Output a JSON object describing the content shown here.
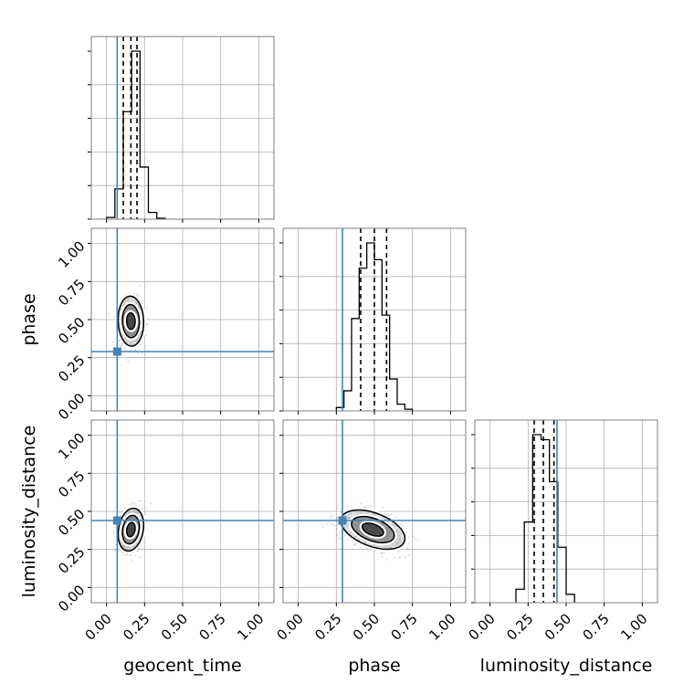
{
  "chart_data": {
    "type": "corner",
    "parameters": [
      "geocent_time",
      "phase",
      "luminosity_distance"
    ],
    "axis_labels": {
      "x": [
        "geocent_time",
        "phase",
        "luminosity_distance"
      ],
      "y": [
        "phase",
        "luminosity_distance"
      ]
    },
    "range": [
      -0.1,
      1.1
    ],
    "tick_values": [
      0.0,
      0.25,
      0.5,
      0.75,
      1.0
    ],
    "tick_labels": [
      "0.00",
      "0.25",
      "0.50",
      "0.75",
      "1.00"
    ],
    "grid": true,
    "truths": {
      "geocent_time": 0.07,
      "phase": 0.29,
      "luminosity_distance": 0.44
    },
    "quantiles": {
      "geocent_time": [
        0.11,
        0.16,
        0.2
      ],
      "phase": [
        0.41,
        0.5,
        0.58
      ],
      "luminosity_distance": [
        0.29,
        0.35,
        0.42
      ]
    },
    "histograms": {
      "geocent_time": {
        "bin_width": 0.055,
        "bins": [
          {
            "x0": 0.0,
            "count": 0.01
          },
          {
            "x0": 0.055,
            "count": 0.18
          },
          {
            "x0": 0.11,
            "count": 0.64
          },
          {
            "x0": 0.165,
            "count": 1.0
          },
          {
            "x0": 0.22,
            "count": 0.31
          },
          {
            "x0": 0.275,
            "count": 0.04
          },
          {
            "x0": 0.33,
            "count": 0.005
          }
        ]
      },
      "phase": {
        "bin_width": 0.05,
        "bins": [
          {
            "x0": 0.25,
            "count": 0.02
          },
          {
            "x0": 0.3,
            "count": 0.12
          },
          {
            "x0": 0.35,
            "count": 0.55
          },
          {
            "x0": 0.4,
            "count": 0.85
          },
          {
            "x0": 0.45,
            "count": 1.0
          },
          {
            "x0": 0.5,
            "count": 0.9
          },
          {
            "x0": 0.55,
            "count": 0.57
          },
          {
            "x0": 0.6,
            "count": 0.19
          },
          {
            "x0": 0.65,
            "count": 0.04
          },
          {
            "x0": 0.7,
            "count": 0.01
          }
        ]
      },
      "luminosity_distance": {
        "bin_width": 0.055,
        "bins": [
          {
            "x0": 0.17,
            "count": 0.08
          },
          {
            "x0": 0.225,
            "count": 0.48
          },
          {
            "x0": 0.28,
            "count": 1.0
          },
          {
            "x0": 0.335,
            "count": 0.97
          },
          {
            "x0": 0.39,
            "count": 0.72
          },
          {
            "x0": 0.445,
            "count": 0.33
          },
          {
            "x0": 0.5,
            "count": 0.05
          }
        ]
      }
    },
    "joint_2d": [
      {
        "x_param": "geocent_time",
        "y_param": "phase",
        "center": [
          0.16,
          0.49
        ],
        "sigma": [
          0.036,
          0.07
        ],
        "rho": -0.05
      },
      {
        "x_param": "geocent_time",
        "y_param": "luminosity_distance",
        "center": [
          0.16,
          0.38
        ],
        "sigma": [
          0.036,
          0.06
        ],
        "rho": 0.2
      },
      {
        "x_param": "phase",
        "y_param": "luminosity_distance",
        "center": [
          0.49,
          0.38
        ],
        "sigma": [
          0.09,
          0.055
        ],
        "rho": -0.45
      }
    ],
    "contour_levels_sigma": [
      1,
      2,
      3
    ]
  }
}
